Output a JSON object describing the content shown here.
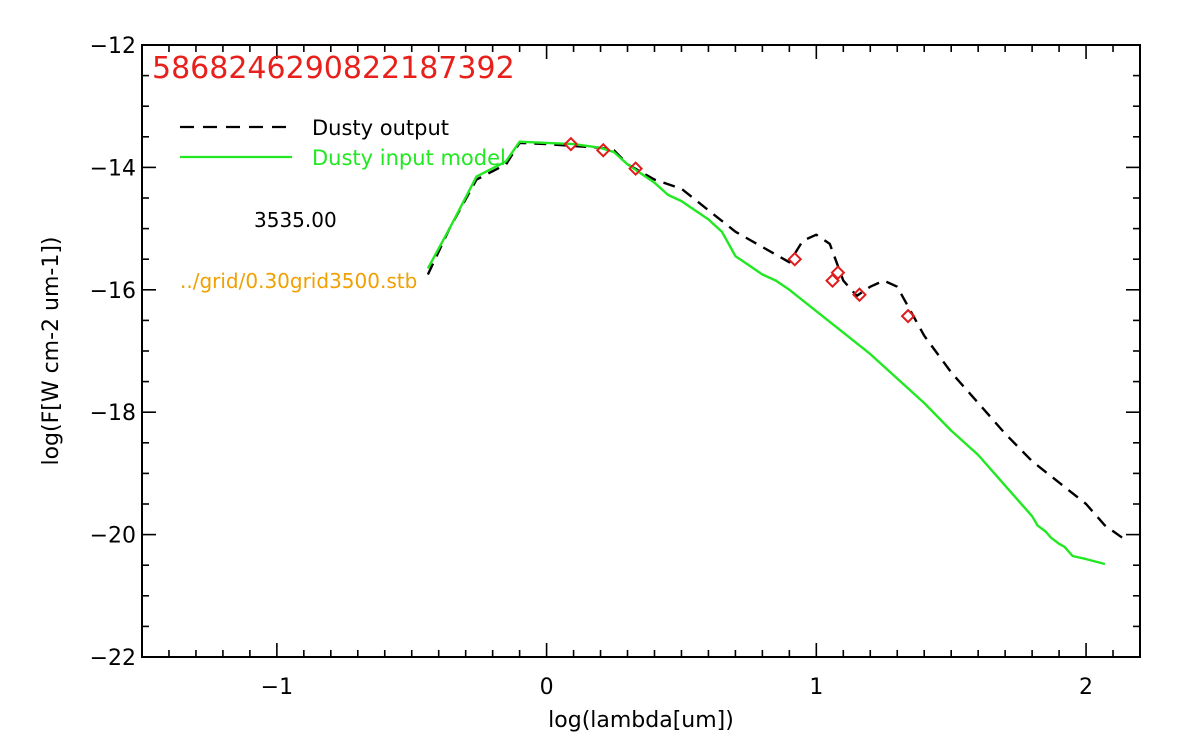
{
  "chart_data": {
    "type": "line",
    "title": "5868246290822187392",
    "xlabel": "log(lambda[um])",
    "ylabel": "log(F[W cm-2 um-1])",
    "xlim": [
      -1.5,
      2.2
    ],
    "ylim": [
      -22,
      -12
    ],
    "x_major_ticks": [
      -1,
      0,
      1,
      2
    ],
    "x_tick_labels": [
      "−1",
      "0",
      "1",
      "2"
    ],
    "y_major_ticks": [
      -22,
      -20,
      -18,
      -16,
      -14,
      -12
    ],
    "y_tick_labels": [
      "−22",
      "−20",
      "−18",
      "−16",
      "−14",
      "−12"
    ],
    "grid": false,
    "legend_position": "top-left",
    "annotations": {
      "value_text": "3535.00",
      "file_text": "../grid/0.30grid3500.stb"
    },
    "colors": {
      "title": "#e8201c",
      "dusty_output": "#000000",
      "dusty_input": "#22e822",
      "observed": "#e01c1c",
      "file_text": "#f0a000"
    },
    "series": [
      {
        "name": "Dusty output",
        "style": "dashed",
        "points": [
          [
            -0.44,
            -15.75
          ],
          [
            -0.36,
            -15.0
          ],
          [
            -0.26,
            -14.2
          ],
          [
            -0.15,
            -13.95
          ],
          [
            -0.1,
            -13.6
          ],
          [
            0.0,
            -13.62
          ],
          [
            0.1,
            -13.65
          ],
          [
            0.2,
            -13.68
          ],
          [
            0.25,
            -13.72
          ],
          [
            0.3,
            -13.95
          ],
          [
            0.4,
            -14.2
          ],
          [
            0.5,
            -14.35
          ],
          [
            0.6,
            -14.7
          ],
          [
            0.7,
            -15.05
          ],
          [
            0.8,
            -15.3
          ],
          [
            0.9,
            -15.55
          ],
          [
            0.95,
            -15.2
          ],
          [
            1.0,
            -15.1
          ],
          [
            1.05,
            -15.25
          ],
          [
            1.1,
            -15.85
          ],
          [
            1.15,
            -16.1
          ],
          [
            1.2,
            -15.95
          ],
          [
            1.25,
            -15.85
          ],
          [
            1.3,
            -15.95
          ],
          [
            1.4,
            -16.75
          ],
          [
            1.5,
            -17.35
          ],
          [
            1.6,
            -17.85
          ],
          [
            1.7,
            -18.35
          ],
          [
            1.8,
            -18.8
          ],
          [
            1.9,
            -19.15
          ],
          [
            2.0,
            -19.5
          ],
          [
            2.07,
            -19.85
          ],
          [
            2.15,
            -20.1
          ]
        ]
      },
      {
        "name": "Dusty input model",
        "style": "solid",
        "points": [
          [
            -0.44,
            -15.65
          ],
          [
            -0.36,
            -15.0
          ],
          [
            -0.26,
            -14.15
          ],
          [
            -0.15,
            -13.9
          ],
          [
            -0.1,
            -13.58
          ],
          [
            0.0,
            -13.6
          ],
          [
            0.1,
            -13.62
          ],
          [
            0.2,
            -13.68
          ],
          [
            0.25,
            -13.75
          ],
          [
            0.3,
            -13.95
          ],
          [
            0.35,
            -14.1
          ],
          [
            0.4,
            -14.25
          ],
          [
            0.45,
            -14.45
          ],
          [
            0.5,
            -14.55
          ],
          [
            0.55,
            -14.7
          ],
          [
            0.6,
            -14.85
          ],
          [
            0.65,
            -15.05
          ],
          [
            0.7,
            -15.45
          ],
          [
            0.75,
            -15.6
          ],
          [
            0.8,
            -15.75
          ],
          [
            0.85,
            -15.85
          ],
          [
            0.9,
            -16.0
          ],
          [
            1.0,
            -16.35
          ],
          [
            1.1,
            -16.7
          ],
          [
            1.2,
            -17.05
          ],
          [
            1.3,
            -17.45
          ],
          [
            1.4,
            -17.85
          ],
          [
            1.5,
            -18.3
          ],
          [
            1.6,
            -18.7
          ],
          [
            1.7,
            -19.2
          ],
          [
            1.8,
            -19.7
          ],
          [
            1.82,
            -19.85
          ],
          [
            1.85,
            -19.95
          ],
          [
            1.87,
            -20.05
          ],
          [
            1.9,
            -20.15
          ],
          [
            1.92,
            -20.2
          ],
          [
            1.95,
            -20.35
          ],
          [
            2.0,
            -20.4
          ],
          [
            2.07,
            -20.48
          ]
        ]
      },
      {
        "name": "",
        "style": "markers",
        "points": [
          [
            0.09,
            -13.62
          ],
          [
            0.21,
            -13.72
          ],
          [
            0.33,
            -14.02
          ],
          [
            0.92,
            -15.5
          ],
          [
            1.06,
            -15.85
          ],
          [
            1.08,
            -15.72
          ],
          [
            1.16,
            -16.08
          ],
          [
            1.34,
            -16.43
          ]
        ]
      }
    ],
    "legend": [
      {
        "label": "Dusty output",
        "style": "dashed"
      },
      {
        "label": "Dusty input model",
        "style": "solid"
      }
    ]
  }
}
